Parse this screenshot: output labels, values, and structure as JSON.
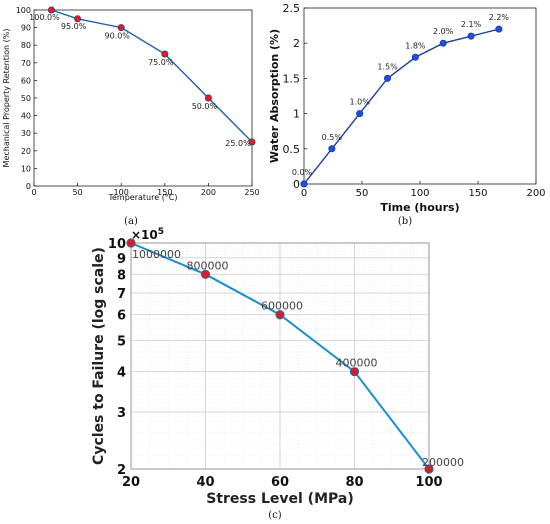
{
  "chart_data": [
    {
      "type": "line",
      "caption": "(a)",
      "xlabel": "Temperature (°C)",
      "ylabel": "Mechanical Property Retention (%)",
      "x": [
        20,
        50,
        100,
        150,
        200,
        250
      ],
      "series": [
        {
          "values": [
            100,
            95,
            90,
            75,
            50,
            25
          ]
        }
      ],
      "data_labels": [
        "100.0%",
        "95.0%",
        "90.0%",
        "75.0%",
        "50.0%",
        "25.0%"
      ],
      "xlim": [
        0,
        250
      ],
      "ylim": [
        0,
        100
      ],
      "xticks": [
        0,
        50,
        100,
        150,
        200,
        250
      ],
      "yticks": [
        0,
        10,
        20,
        30,
        40,
        50,
        60,
        70,
        80,
        90,
        100
      ],
      "grid": false,
      "line_color": "#1a5fb4",
      "marker_color": "#e01b24"
    },
    {
      "type": "line",
      "caption": "(b)",
      "xlabel": "Time (hours)",
      "ylabel": "Water Absorption (%)",
      "x": [
        0,
        24,
        48,
        72,
        96,
        120,
        144,
        168
      ],
      "series": [
        {
          "values": [
            0.0,
            0.5,
            1.0,
            1.5,
            1.8,
            2.0,
            2.1,
            2.2
          ]
        }
      ],
      "data_labels": [
        "0.0%",
        "0.5%",
        "1.0%",
        "1.5%",
        "1.8%",
        "2.0%",
        "2.1%",
        "2.2%"
      ],
      "xlim": [
        0,
        200
      ],
      "ylim": [
        0,
        2.5
      ],
      "xticks": [
        0,
        50,
        100,
        150,
        200
      ],
      "yticks": [
        "0",
        "0.5",
        "1",
        "1.5",
        "2",
        "2.5"
      ],
      "grid": false,
      "line_color": "#1c3fa0",
      "marker_color": "#1f4fe0"
    },
    {
      "type": "line",
      "caption": "(c)",
      "xlabel": "Stress Level (MPa)",
      "ylabel": "Cycles to Failure (log scale)",
      "scale_label": "×10",
      "scale_exponent": "5",
      "y_scale": "log",
      "x": [
        20,
        40,
        60,
        80,
        100
      ],
      "series": [
        {
          "values": [
            1000000,
            800000,
            600000,
            400000,
            200000
          ]
        }
      ],
      "data_labels": [
        "1000000",
        "800000",
        "600000",
        "400000",
        "200000"
      ],
      "xlim": [
        20,
        100
      ],
      "ylim": [
        200000,
        1000000
      ],
      "xticks": [
        20,
        40,
        60,
        80,
        100
      ],
      "yticks": [
        2,
        3,
        4,
        5,
        6,
        7,
        8,
        9,
        10
      ],
      "grid": true,
      "line_color": "#1a8fd0",
      "marker_color": "#d0202a"
    }
  ]
}
